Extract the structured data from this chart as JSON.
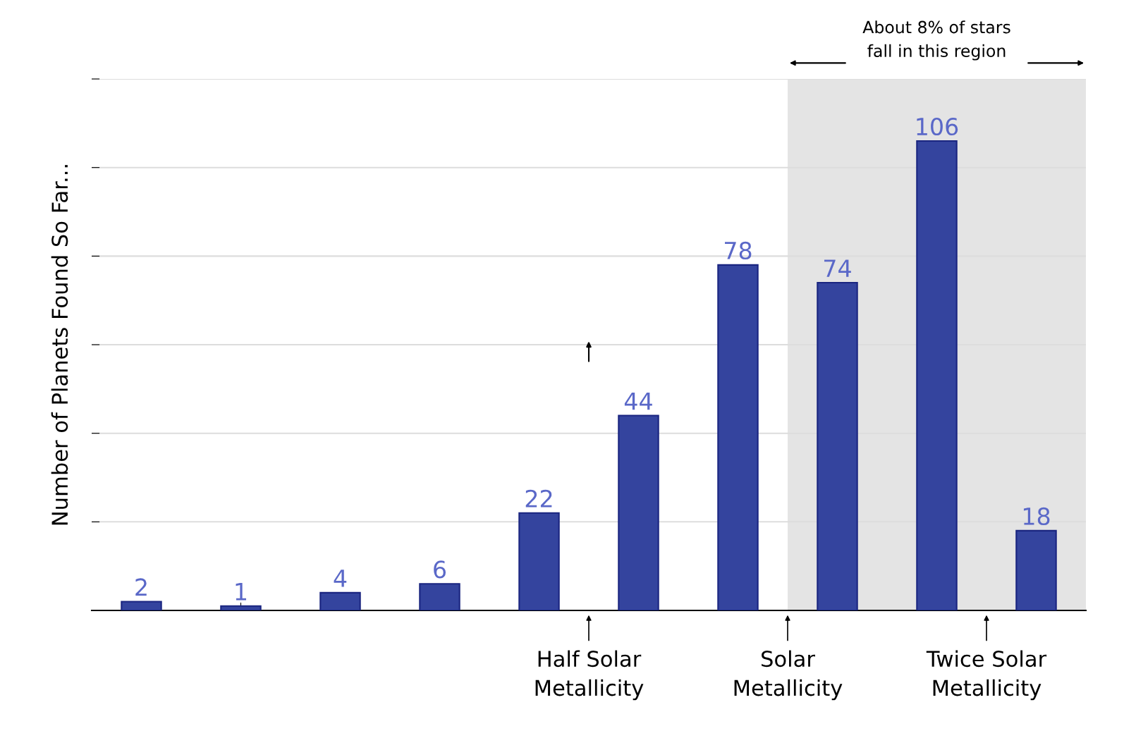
{
  "chart_data": {
    "type": "bar",
    "ylabel": "Number of Planets Found So Far...",
    "categories": [
      null,
      null,
      null,
      null,
      null,
      null,
      null,
      null,
      null,
      null
    ],
    "values": [
      2,
      1,
      4,
      6,
      22,
      44,
      78,
      74,
      106,
      18
    ],
    "color": "#34449e",
    "data_labels": true,
    "ylim": [
      0,
      120
    ],
    "yticks": [
      {
        "value": 0,
        "label": null
      },
      {
        "value": 20,
        "label": null
      },
      {
        "value": 40,
        "label": null
      },
      {
        "value": 60,
        "label": null
      },
      {
        "value": 80,
        "label": null
      },
      {
        "value": 100,
        "label": null
      },
      {
        "value": 120,
        "label": null
      }
    ],
    "grid": "y",
    "tick_labels": false,
    "annotations": [
      "About 8% of stars\nfall in this region",
      "Half Solar\nMetallicity",
      "Solar\nMetallicity",
      "Twice Solar\nMetallicity"
    ]
  }
}
